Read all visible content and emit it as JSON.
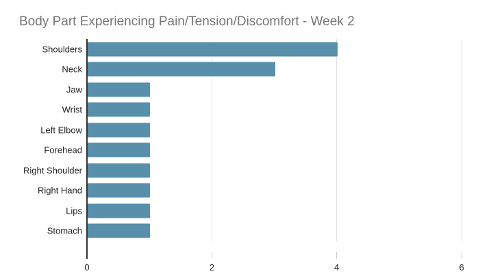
{
  "title": "Body Part Experiencing Pain/Tension/Discomfort - Week 2",
  "colors": {
    "bar": "#5890ab",
    "title_text": "#757575",
    "label_text": "#222222",
    "axis_line": "#333333",
    "gridline": "#e3e3e3",
    "tick_mark": "#cccccc",
    "background": "#ffffff"
  },
  "chart_data": {
    "type": "bar",
    "orientation": "horizontal",
    "title": "Body Part Experiencing Pain/Tension/Discomfort - Week 2",
    "categories": [
      "Shoulders",
      "Neck",
      "Jaw",
      "Wrist",
      "Left Elbow",
      "Forehead",
      "Right Shoulder",
      "Right Hand",
      "Lips",
      "Stomach"
    ],
    "values": [
      4,
      3,
      1,
      1,
      1,
      1,
      1,
      1,
      1,
      1
    ],
    "xlabel": "",
    "ylabel": "",
    "xlim": [
      0,
      6
    ],
    "x_ticks": [
      0,
      2,
      4,
      6
    ],
    "grid": true,
    "legend": false
  }
}
